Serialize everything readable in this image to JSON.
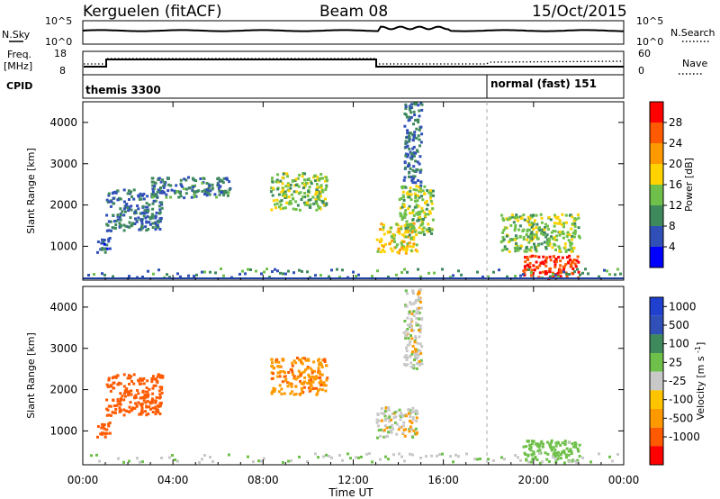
{
  "header": {
    "station": "Kerguelen (fitACF)",
    "beam": "Beam 08",
    "date": "15/Oct/2015"
  },
  "strips": {
    "nsky": {
      "label": "N.Sky",
      "tick_top": "10^5",
      "tick_bottom": "10^0",
      "right_label": "N.Search",
      "right_tick_top": "10^5",
      "right_tick_bottom": "10^0"
    },
    "freq": {
      "label_line1": "Freq.",
      "label_line2": "[MHz]",
      "tick_top": "18",
      "tick_bottom": "8",
      "right_label": "Nave",
      "right_tick_top": "60",
      "right_tick_bottom": "0"
    },
    "cpid": {
      "label": "CPID",
      "segments": [
        {
          "name": "themis 3300"
        },
        {
          "name": "normal (fast) 151"
        }
      ]
    }
  },
  "colors": {
    "power": [
      "#0000ff",
      "#3050b8",
      "#3f8a5c",
      "#6fc04a",
      "#ffd200",
      "#ff9900",
      "#ff5a00",
      "#ff0000"
    ],
    "velocity": [
      "#ff0000",
      "#ff5a00",
      "#ff9900",
      "#ffc400",
      "#c8c8c8",
      "#6fc04a",
      "#3f8a5c",
      "#3050b8",
      "#2040d0"
    ],
    "ground": "#c8c8c8"
  },
  "chart_data": [
    {
      "type": "heatmap",
      "title": "Power",
      "ylabel": "Slant Range [km]",
      "xlabel": "Time UT",
      "xlim": [
        "00:00",
        "24:00"
      ],
      "ylim": [
        180,
        4500
      ],
      "x_ticks": [
        "00:00",
        "04:00",
        "08:00",
        "12:00",
        "16:00",
        "20:00",
        "00:00"
      ],
      "y_ticks": [
        1000,
        2000,
        3000,
        4000
      ],
      "colorbar": {
        "label": "Power [dB]",
        "ticks": [
          4,
          8,
          12,
          16,
          20,
          24,
          28
        ],
        "range": [
          0,
          32
        ]
      },
      "regions": [
        {
          "t": [
            0.6,
            1.2
          ],
          "r": [
            850,
            1250
          ],
          "level": 6
        },
        {
          "t": [
            1.0,
            3.5
          ],
          "r": [
            1400,
            2400
          ],
          "level": 8
        },
        {
          "t": [
            3.0,
            6.5
          ],
          "r": [
            2200,
            2700
          ],
          "level": 9
        },
        {
          "t": [
            8.3,
            10.8
          ],
          "r": [
            1900,
            2800
          ],
          "level": 14
        },
        {
          "t": [
            13.0,
            14.8
          ],
          "r": [
            850,
            1600
          ],
          "level": 18
        },
        {
          "t": [
            14.0,
            15.5
          ],
          "r": [
            1300,
            2500
          ],
          "level": 14
        },
        {
          "t": [
            14.2,
            15.0
          ],
          "r": [
            2500,
            4500
          ],
          "level": 8
        },
        {
          "t": [
            19.5,
            22.0
          ],
          "r": [
            250,
            800
          ],
          "level": 28
        },
        {
          "t": [
            18.5,
            22.0
          ],
          "r": [
            900,
            1800
          ],
          "level": 14
        }
      ]
    },
    {
      "type": "heatmap",
      "title": "Velocity",
      "ylabel": "Slant Range [km]",
      "xlabel": "Time UT",
      "xlim": [
        "00:00",
        "24:00"
      ],
      "ylim": [
        180,
        4500
      ],
      "x_ticks": [
        "00:00",
        "04:00",
        "08:00",
        "12:00",
        "16:00",
        "20:00",
        "00:00"
      ],
      "y_ticks": [
        1000,
        2000,
        3000,
        4000
      ],
      "colorbar": {
        "label": "Velocity [m s^-1]",
        "ticks": [
          1000,
          500,
          100,
          25,
          -25,
          -100,
          -500,
          -1000
        ]
      },
      "regions": [
        {
          "t": [
            0.6,
            1.2
          ],
          "r": [
            850,
            1250
          ],
          "velocity": -150
        },
        {
          "t": [
            1.0,
            3.5
          ],
          "r": [
            1400,
            2400
          ],
          "velocity": -200
        },
        {
          "t": [
            8.3,
            10.8
          ],
          "r": [
            1900,
            2800
          ],
          "velocity": -80
        },
        {
          "t": [
            13.0,
            14.8
          ],
          "r": [
            850,
            1600
          ],
          "velocity": 0
        },
        {
          "t": [
            14.2,
            15.0
          ],
          "r": [
            2500,
            4500
          ],
          "velocity": 0
        },
        {
          "t": [
            19.5,
            22.0
          ],
          "r": [
            250,
            800
          ],
          "velocity": 60
        }
      ]
    }
  ]
}
